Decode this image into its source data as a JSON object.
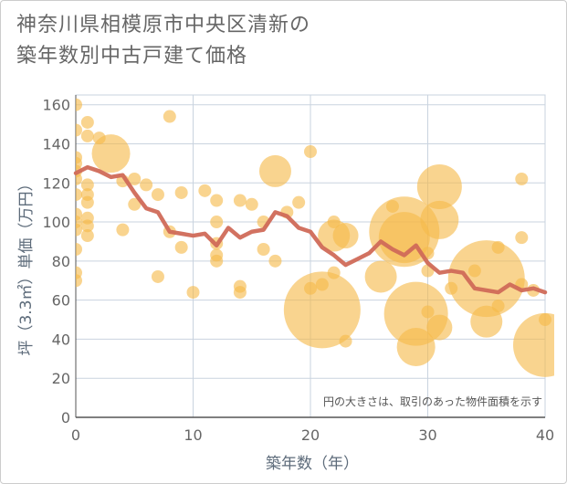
{
  "title_line1": "神奈川県相模原市中央区清新の",
  "title_line2": "築年数別中古戸建て価格",
  "chart_data": {
    "type": "scatter",
    "title": "神奈川県相模原市中央区清新の築年数別中古戸建て価格",
    "xlabel": "築年数（年）",
    "ylabel": "坪（3.3㎡）単価（万円）",
    "xlim": [
      0,
      40
    ],
    "ylim": [
      0,
      165
    ],
    "x_ticks": [
      0,
      10,
      20,
      30,
      40
    ],
    "y_ticks": [
      0,
      20,
      40,
      60,
      80,
      100,
      120,
      140,
      160
    ],
    "grid": true,
    "note": "円の大きさは、取引のあった物件面積を示す",
    "colors": {
      "bubble": "#f5b94a",
      "line": "#d06a58",
      "grid": "#c9d3df"
    },
    "points": [
      {
        "x": 0,
        "y": 160,
        "s": 1
      },
      {
        "x": 0,
        "y": 147,
        "s": 1
      },
      {
        "x": 0,
        "y": 133,
        "s": 1
      },
      {
        "x": 0,
        "y": 130,
        "s": 1
      },
      {
        "x": 0,
        "y": 126,
        "s": 1
      },
      {
        "x": 0,
        "y": 122,
        "s": 1
      },
      {
        "x": 0,
        "y": 114,
        "s": 1
      },
      {
        "x": 0,
        "y": 104,
        "s": 1
      },
      {
        "x": 0,
        "y": 100,
        "s": 1
      },
      {
        "x": 0,
        "y": 96,
        "s": 1
      },
      {
        "x": 0,
        "y": 86,
        "s": 1
      },
      {
        "x": 0,
        "y": 74,
        "s": 1
      },
      {
        "x": 0,
        "y": 70,
        "s": 1
      },
      {
        "x": 1,
        "y": 151,
        "s": 1
      },
      {
        "x": 1,
        "y": 144,
        "s": 1
      },
      {
        "x": 1,
        "y": 119,
        "s": 1
      },
      {
        "x": 1,
        "y": 114,
        "s": 1
      },
      {
        "x": 1,
        "y": 110,
        "s": 1
      },
      {
        "x": 1,
        "y": 102,
        "s": 1
      },
      {
        "x": 1,
        "y": 98,
        "s": 1
      },
      {
        "x": 1,
        "y": 93,
        "s": 1
      },
      {
        "x": 2,
        "y": 143,
        "s": 1
      },
      {
        "x": 3,
        "y": 135,
        "s": 3
      },
      {
        "x": 4,
        "y": 121,
        "s": 1
      },
      {
        "x": 4,
        "y": 96,
        "s": 1
      },
      {
        "x": 5,
        "y": 122,
        "s": 1
      },
      {
        "x": 5,
        "y": 109,
        "s": 1
      },
      {
        "x": 6,
        "y": 119,
        "s": 1
      },
      {
        "x": 7,
        "y": 114,
        "s": 1
      },
      {
        "x": 7,
        "y": 72,
        "s": 1
      },
      {
        "x": 8,
        "y": 154,
        "s": 1
      },
      {
        "x": 8,
        "y": 95,
        "s": 1
      },
      {
        "x": 9,
        "y": 115,
        "s": 1
      },
      {
        "x": 9,
        "y": 87,
        "s": 1
      },
      {
        "x": 10,
        "y": 64,
        "s": 1
      },
      {
        "x": 11,
        "y": 116,
        "s": 1
      },
      {
        "x": 12,
        "y": 111,
        "s": 1
      },
      {
        "x": 12,
        "y": 100,
        "s": 1
      },
      {
        "x": 12,
        "y": 89,
        "s": 1
      },
      {
        "x": 12,
        "y": 83,
        "s": 1
      },
      {
        "x": 12,
        "y": 80,
        "s": 1
      },
      {
        "x": 14,
        "y": 111,
        "s": 1
      },
      {
        "x": 14,
        "y": 67,
        "s": 1
      },
      {
        "x": 14,
        "y": 64,
        "s": 1
      },
      {
        "x": 15,
        "y": 109,
        "s": 1
      },
      {
        "x": 16,
        "y": 100,
        "s": 1
      },
      {
        "x": 16,
        "y": 86,
        "s": 1
      },
      {
        "x": 17,
        "y": 126,
        "s": 2.5
      },
      {
        "x": 17,
        "y": 80,
        "s": 1
      },
      {
        "x": 18,
        "y": 105,
        "s": 1
      },
      {
        "x": 19,
        "y": 110,
        "s": 1
      },
      {
        "x": 20,
        "y": 136,
        "s": 1
      },
      {
        "x": 20,
        "y": 66,
        "s": 1
      },
      {
        "x": 21,
        "y": 55,
        "s": 6
      },
      {
        "x": 21,
        "y": 68,
        "s": 1
      },
      {
        "x": 22,
        "y": 100,
        "s": 1
      },
      {
        "x": 22,
        "y": 93,
        "s": 2.5
      },
      {
        "x": 22,
        "y": 74,
        "s": 1
      },
      {
        "x": 23,
        "y": 93,
        "s": 2
      },
      {
        "x": 23,
        "y": 39,
        "s": 1
      },
      {
        "x": 26,
        "y": 72,
        "s": 2.5
      },
      {
        "x": 27,
        "y": 108,
        "s": 1
      },
      {
        "x": 28,
        "y": 95,
        "s": 5.5
      },
      {
        "x": 28,
        "y": 92,
        "s": 4
      },
      {
        "x": 29,
        "y": 53,
        "s": 5
      },
      {
        "x": 29,
        "y": 36,
        "s": 3
      },
      {
        "x": 30,
        "y": 84,
        "s": 1
      },
      {
        "x": 30,
        "y": 75,
        "s": 1
      },
      {
        "x": 30,
        "y": 54,
        "s": 1
      },
      {
        "x": 31,
        "y": 118,
        "s": 3.5
      },
      {
        "x": 31,
        "y": 101,
        "s": 3
      },
      {
        "x": 31,
        "y": 46,
        "s": 2
      },
      {
        "x": 32,
        "y": 66,
        "s": 1
      },
      {
        "x": 34,
        "y": 75,
        "s": 1
      },
      {
        "x": 35,
        "y": 71,
        "s": 6
      },
      {
        "x": 35,
        "y": 49,
        "s": 2.5
      },
      {
        "x": 36,
        "y": 87,
        "s": 1
      },
      {
        "x": 36,
        "y": 57,
        "s": 1
      },
      {
        "x": 38,
        "y": 122,
        "s": 1
      },
      {
        "x": 38,
        "y": 92,
        "s": 1
      },
      {
        "x": 38,
        "y": 68,
        "s": 1
      },
      {
        "x": 39,
        "y": 65,
        "s": 1
      },
      {
        "x": 40,
        "y": 50,
        "s": 1
      },
      {
        "x": 40,
        "y": 37,
        "s": 5
      }
    ],
    "trend": {
      "x": [
        0,
        1,
        2,
        3,
        4,
        5,
        6,
        7,
        8,
        9,
        10,
        11,
        12,
        13,
        14,
        15,
        16,
        17,
        18,
        19,
        20,
        21,
        22,
        23,
        24,
        25,
        26,
        27,
        28,
        29,
        30,
        31,
        32,
        33,
        34,
        35,
        36,
        37,
        38,
        39,
        40
      ],
      "y": [
        125,
        128,
        126,
        123,
        124,
        115,
        107,
        105,
        95,
        94,
        93,
        94,
        88,
        97,
        92,
        95,
        96,
        105,
        103,
        97,
        95,
        87,
        83,
        78,
        81,
        84,
        90,
        86,
        83,
        88,
        79,
        74,
        75,
        74,
        66,
        65,
        64,
        68,
        65,
        66,
        64
      ]
    }
  }
}
